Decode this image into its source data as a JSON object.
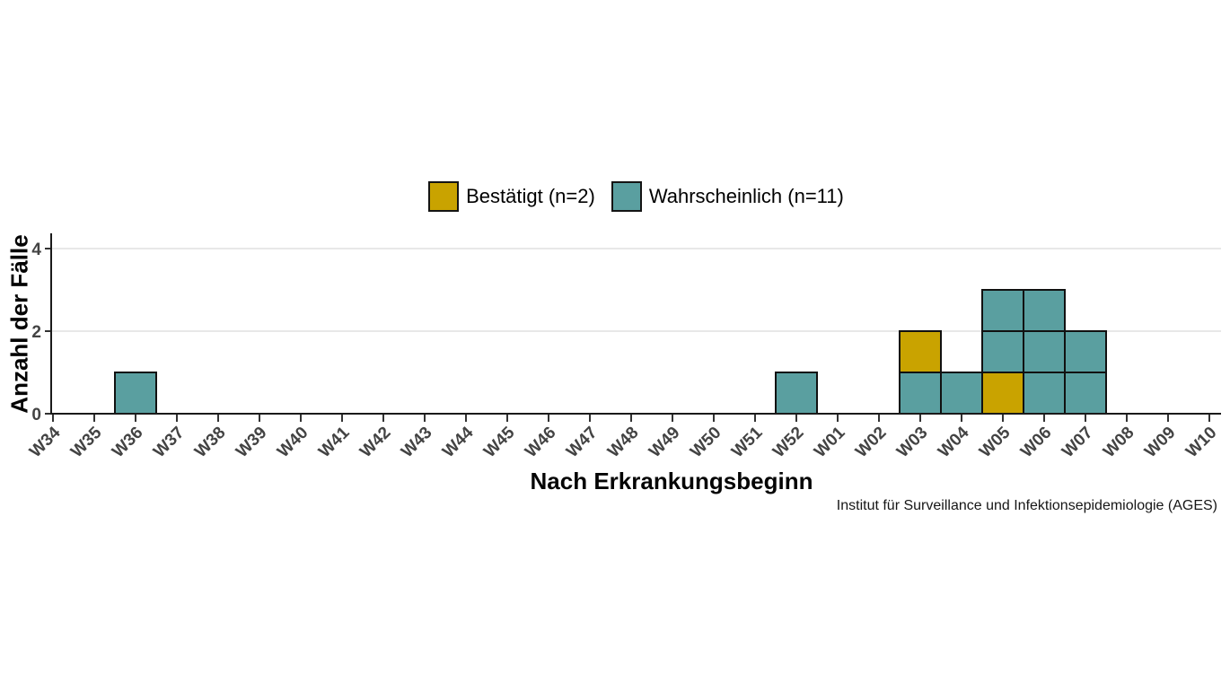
{
  "page": {
    "background": "#FFFFFF"
  },
  "legend": {
    "position": "top-center",
    "items": [
      {
        "key": "bestaetigt",
        "label": "Bestätigt (n=2)",
        "color": "#C9A300",
        "count": 2
      },
      {
        "key": "wahrscheinlich",
        "label": "Wahrscheinlich (n=11)",
        "color": "#5A9FA0",
        "count": 11
      }
    ]
  },
  "chart_data": {
    "type": "bar",
    "subtype": "stacked-unit-epicurve",
    "title": "",
    "xlabel": "Nach Erkrankungsbeginn",
    "ylabel": "Anzahl der Fälle",
    "categories": [
      "W34",
      "W35",
      "W36",
      "W37",
      "W38",
      "W39",
      "W40",
      "W41",
      "W42",
      "W43",
      "W44",
      "W45",
      "W46",
      "W47",
      "W48",
      "W49",
      "W50",
      "W51",
      "W52",
      "W01",
      "W02",
      "W03",
      "W04",
      "W05",
      "W06",
      "W07",
      "W08",
      "W09",
      "W10"
    ],
    "y_ticks": [
      0,
      2,
      4
    ],
    "ylim": [
      0,
      4.3
    ],
    "grid_values": [
      2,
      4
    ],
    "grid": "horizontal-light",
    "series": [
      {
        "name": "Bestätigt (n=2)",
        "key": "bestaetigt",
        "color": "#C9A300",
        "total": 2
      },
      {
        "name": "Wahrscheinlich (n=11)",
        "key": "wahrscheinlich",
        "color": "#5A9FA0",
        "total": 11
      }
    ],
    "columns": [
      {
        "category": "W36",
        "blocks": [
          "wahrscheinlich"
        ]
      },
      {
        "category": "W52",
        "blocks": [
          "wahrscheinlich"
        ]
      },
      {
        "category": "W03",
        "blocks": [
          "wahrscheinlich",
          "bestaetigt"
        ]
      },
      {
        "category": "W04",
        "blocks": [
          "wahrscheinlich"
        ]
      },
      {
        "category": "W05",
        "blocks": [
          "bestaetigt",
          "wahrscheinlich",
          "wahrscheinlich"
        ]
      },
      {
        "category": "W06",
        "blocks": [
          "wahrscheinlich",
          "wahrscheinlich",
          "wahrscheinlich"
        ]
      },
      {
        "category": "W07",
        "blocks": [
          "wahrscheinlich",
          "wahrscheinlich"
        ]
      }
    ],
    "colors": {
      "gridline": "#E8E8E8",
      "axis": "#1A1A1A",
      "tick": "#333333",
      "tick_label": "#434343",
      "block_border": "#111111"
    }
  },
  "footer": {
    "credit": "Institut für Surveillance und Infektionsepidemiologie (AGES)"
  }
}
